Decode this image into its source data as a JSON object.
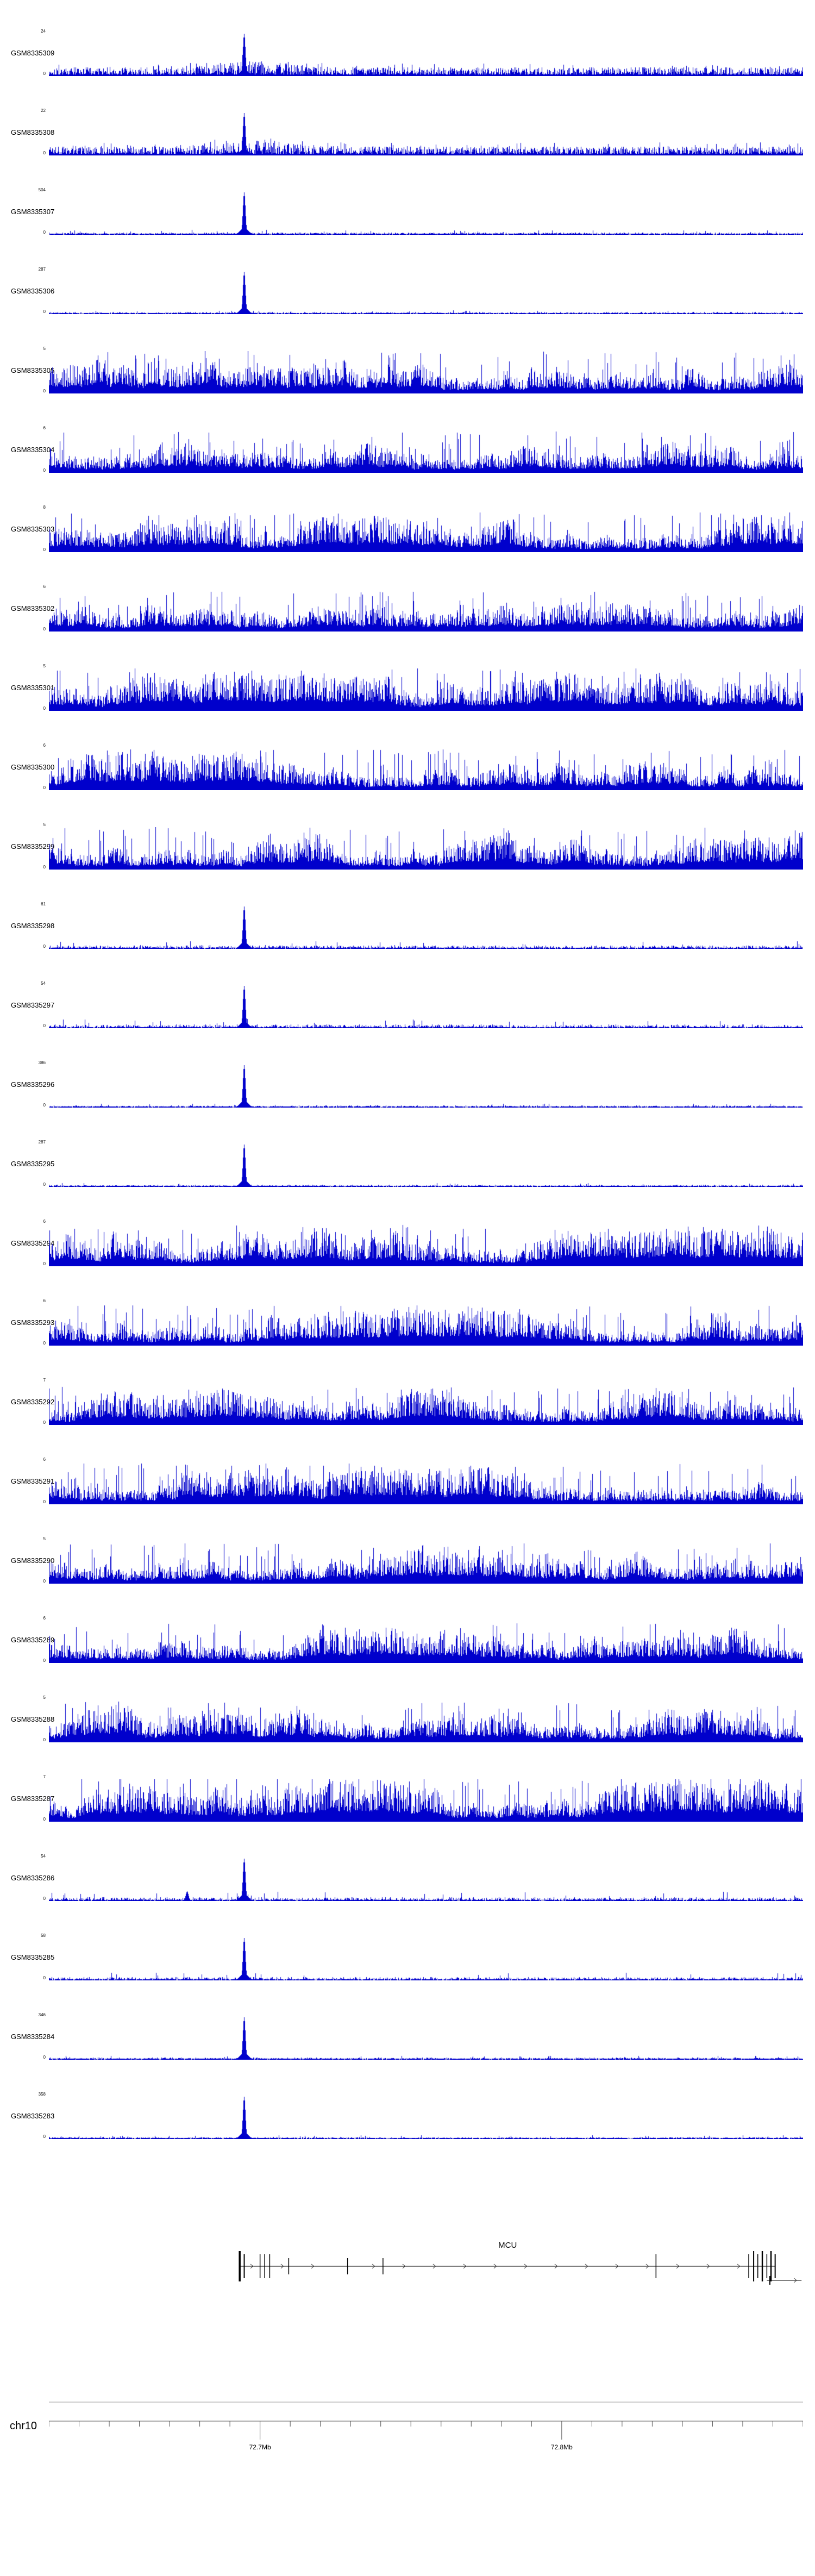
{
  "colors": {
    "signal": "#0000cc",
    "baseline": "#c9c9c9",
    "gene": "#000000",
    "axis": "#555555",
    "panel_line": "#999999"
  },
  "chart_data": {
    "type": "area",
    "subtype": "genome_browser_coverage_tracks",
    "region": {
      "chrom": "chr10",
      "start_mb": 72.63,
      "end_mb": 72.88
    },
    "peak_frac": 0.2585,
    "y_zero_label": "0",
    "ruler": {
      "chrom_label": "chr10",
      "minor_tick_mb": 0.01,
      "labeled_ticks": [
        {
          "mb": 72.7,
          "label": "72.7Mb"
        },
        {
          "mb": 72.8,
          "label": "72.8Mb"
        }
      ]
    },
    "gene": {
      "name": "MCU",
      "strand": "+",
      "start_frac": 0.2535,
      "end_frac": 0.963,
      "exons": [
        {
          "f": 0.253,
          "h": 56,
          "w": 3.5
        },
        {
          "f": 0.259,
          "h": 44,
          "w": 2
        },
        {
          "f": 0.28,
          "h": 44,
          "w": 1.5
        },
        {
          "f": 0.2862,
          "h": 44,
          "w": 1.5
        },
        {
          "f": 0.2928,
          "h": 44,
          "w": 1.5
        },
        {
          "f": 0.318,
          "h": 30,
          "w": 1.5
        },
        {
          "f": 0.396,
          "h": 30,
          "w": 1.5
        },
        {
          "f": 0.443,
          "h": 30,
          "w": 1.5
        },
        {
          "f": 0.805,
          "h": 44,
          "w": 1.5
        },
        {
          "f": 0.928,
          "h": 44,
          "w": 1.5
        },
        {
          "f": 0.9345,
          "h": 56,
          "w": 2
        },
        {
          "f": 0.94,
          "h": 44,
          "w": 1.5
        },
        {
          "f": 0.946,
          "h": 56,
          "w": 2.5
        },
        {
          "f": 0.952,
          "h": 44,
          "w": 1.5
        },
        {
          "f": 0.9575,
          "h": 56,
          "w": 2.5
        },
        {
          "f": 0.963,
          "h": 44,
          "w": 2
        }
      ],
      "second_row": {
        "start_frac": 0.952,
        "end_frac": 0.998,
        "exons": [
          {
            "f": 0.956,
            "h": 16,
            "w": 2
          }
        ]
      }
    },
    "tracks": [
      {
        "label": "GSM8335309",
        "ymax": "24",
        "pattern": "peak_noise",
        "noise": 0.22,
        "seed": 101
      },
      {
        "label": "GSM8335308",
        "ymax": "22",
        "pattern": "peak_noise",
        "noise": 0.2,
        "seed": 102
      },
      {
        "label": "GSM8335307",
        "ymax": "504",
        "pattern": "peak",
        "noise": 0.035,
        "seed": 103
      },
      {
        "label": "GSM8335306",
        "ymax": "287",
        "pattern": "peak",
        "noise": 0.03,
        "seed": 104
      },
      {
        "label": "GSM8335305",
        "ymax": "5",
        "pattern": "dense",
        "amp": 1.0,
        "seed": 105
      },
      {
        "label": "GSM8335304",
        "ymax": "6",
        "pattern": "dense",
        "amp": 0.97,
        "seed": 106
      },
      {
        "label": "GSM8335303",
        "ymax": "8",
        "pattern": "dense",
        "amp": 0.93,
        "seed": 107
      },
      {
        "label": "GSM8335302",
        "ymax": "6",
        "pattern": "dense",
        "amp": 0.95,
        "seed": 108
      },
      {
        "label": "GSM8335301",
        "ymax": "5",
        "pattern": "dense",
        "amp": 1.0,
        "seed": 109
      },
      {
        "label": "GSM8335300",
        "ymax": "6",
        "pattern": "dense",
        "amp": 0.96,
        "seed": 110
      },
      {
        "label": "GSM8335299",
        "ymax": "5",
        "pattern": "dense",
        "amp": 1.0,
        "seed": 111
      },
      {
        "label": "GSM8335298",
        "ymax": "61",
        "pattern": "peak",
        "noise": 0.065,
        "seed": 112
      },
      {
        "label": "GSM8335297",
        "ymax": "54",
        "pattern": "peak",
        "noise": 0.07,
        "seed": 113
      },
      {
        "label": "GSM8335296",
        "ymax": "386",
        "pattern": "peak",
        "noise": 0.03,
        "seed": 114
      },
      {
        "label": "GSM8335295",
        "ymax": "287",
        "pattern": "peak",
        "noise": 0.03,
        "seed": 115
      },
      {
        "label": "GSM8335294",
        "ymax": "6",
        "pattern": "dense",
        "amp": 0.97,
        "seed": 116
      },
      {
        "label": "GSM8335293",
        "ymax": "6",
        "pattern": "dense",
        "amp": 0.95,
        "seed": 117
      },
      {
        "label": "GSM8335292",
        "ymax": "7",
        "pattern": "dense",
        "amp": 0.9,
        "seed": 118
      },
      {
        "label": "GSM8335291",
        "ymax": "6",
        "pattern": "dense",
        "amp": 0.97,
        "seed": 119
      },
      {
        "label": "GSM8335290",
        "ymax": "5",
        "pattern": "dense",
        "amp": 0.95,
        "seed": 120
      },
      {
        "label": "GSM8335289",
        "ymax": "6",
        "pattern": "dense",
        "amp": 0.93,
        "seed": 121
      },
      {
        "label": "GSM8335288",
        "ymax": "5",
        "pattern": "dense",
        "amp": 0.95,
        "seed": 122
      },
      {
        "label": "GSM8335287",
        "ymax": "7",
        "pattern": "dense",
        "amp": 1.08,
        "seed": 123
      },
      {
        "label": "GSM8335286",
        "ymax": "54",
        "pattern": "peak",
        "noise": 0.07,
        "seed": 124,
        "minor_peaks": [
          {
            "f": 0.183,
            "h": 0.22,
            "sigma": 2.5
          }
        ]
      },
      {
        "label": "GSM8335285",
        "ymax": "58",
        "pattern": "peak",
        "noise": 0.06,
        "seed": 125
      },
      {
        "label": "GSM8335284",
        "ymax": "346",
        "pattern": "peak",
        "noise": 0.03,
        "seed": 126
      },
      {
        "label": "GSM8335283",
        "ymax": "358",
        "pattern": "peak",
        "noise": 0.028,
        "seed": 127
      }
    ]
  }
}
